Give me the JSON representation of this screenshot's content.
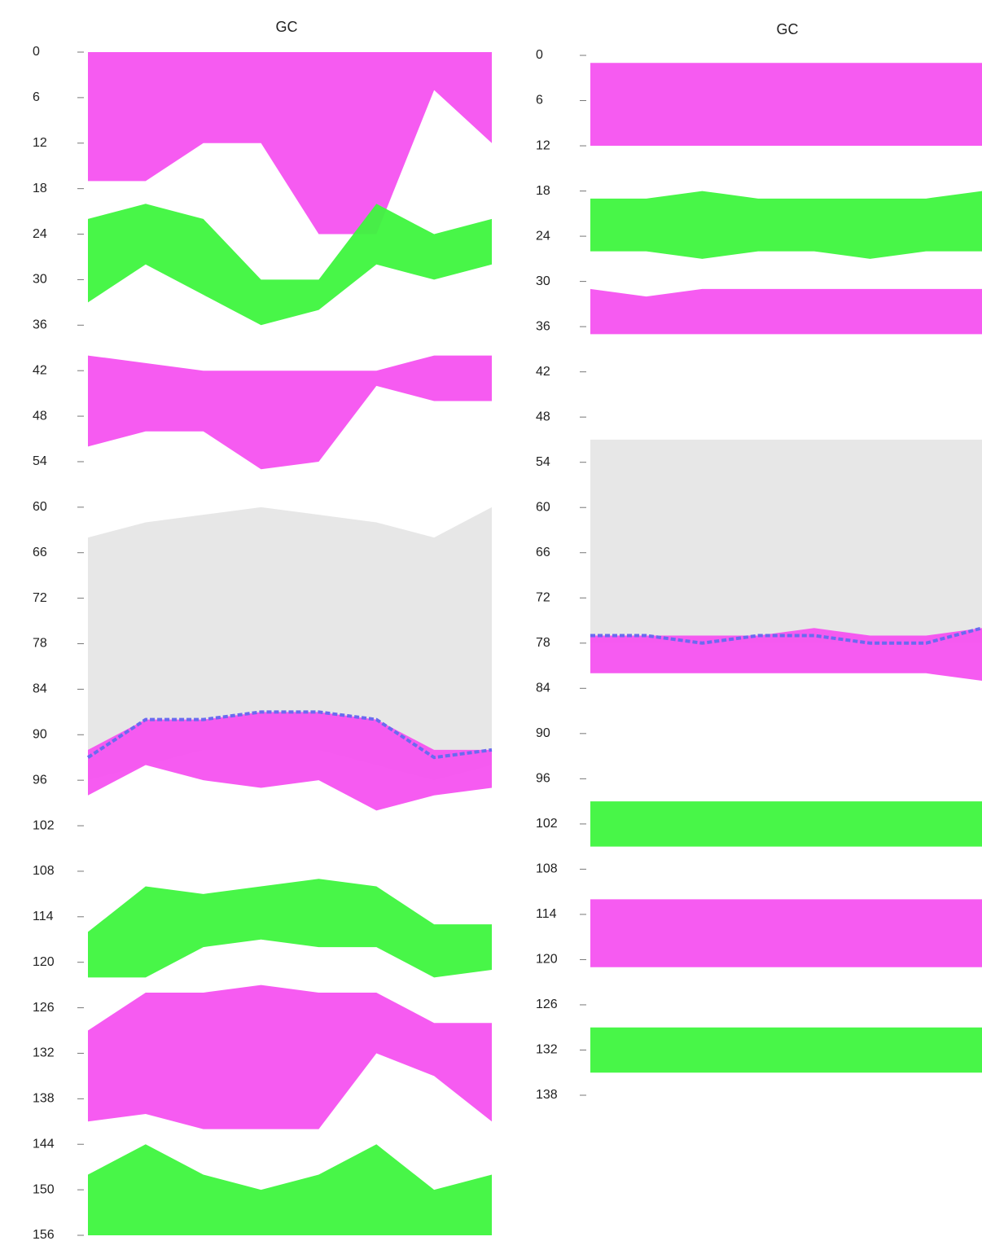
{
  "chart_data": [
    {
      "type": "range-area",
      "title": "GC",
      "ylim": [
        0,
        156
      ],
      "yticks": [
        0,
        6,
        12,
        18,
        24,
        30,
        36,
        42,
        48,
        54,
        60,
        66,
        72,
        78,
        84,
        90,
        96,
        102,
        108,
        114,
        120,
        126,
        132,
        138,
        144,
        150,
        156
      ],
      "series": [
        {
          "color": "#f552f0",
          "top": [
            0,
            0,
            0,
            0,
            0,
            0,
            0,
            0
          ],
          "bottom": [
            17,
            17,
            12,
            12,
            24,
            24,
            5,
            12
          ]
        },
        {
          "color": "#3ef53e",
          "top": [
            22,
            20,
            22,
            30,
            30,
            20,
            24,
            22
          ],
          "bottom": [
            33,
            28,
            32,
            36,
            34,
            28,
            30,
            28
          ]
        },
        {
          "color": "#f552f0",
          "top": [
            40,
            41,
            42,
            42,
            42,
            42,
            40,
            40
          ],
          "bottom": [
            52,
            50,
            50,
            55,
            54,
            44,
            46,
            46
          ]
        },
        {
          "color": "#e6e6e6",
          "top": [
            64,
            62,
            61,
            60,
            61,
            62,
            64,
            60
          ],
          "bottom": [
            96,
            94,
            92,
            92,
            92,
            94,
            96,
            94
          ]
        },
        {
          "color": "#f552f0",
          "top": [
            92,
            88,
            88,
            87,
            87,
            88,
            92,
            92
          ],
          "bottom": [
            98,
            94,
            96,
            97,
            96,
            100,
            98,
            97
          ]
        },
        {
          "color": "#6a6af0",
          "values": [
            93,
            88,
            88,
            87,
            87,
            88,
            93,
            92
          ]
        },
        {
          "color": "#3ef53e",
          "top": [
            116,
            110,
            111,
            110,
            109,
            110,
            115,
            115
          ],
          "bottom": [
            122,
            122,
            118,
            117,
            118,
            118,
            122,
            121
          ]
        },
        {
          "color": "#f552f0",
          "top": [
            129,
            124,
            124,
            123,
            124,
            124,
            128,
            128
          ],
          "bottom": [
            141,
            140,
            142,
            142,
            142,
            132,
            135,
            141
          ]
        },
        {
          "color": "#3ef53e",
          "top": [
            148,
            144,
            148,
            150,
            148,
            144,
            150,
            148
          ],
          "bottom": [
            156,
            156,
            156,
            156,
            156,
            156,
            156,
            156
          ]
        }
      ]
    },
    {
      "type": "range-area",
      "title": "GC",
      "ylim": [
        0,
        138
      ],
      "yticks": [
        0,
        6,
        12,
        18,
        24,
        30,
        36,
        42,
        48,
        54,
        60,
        66,
        72,
        78,
        84,
        90,
        96,
        102,
        108,
        114,
        120,
        126,
        132,
        138
      ],
      "series": [
        {
          "color": "#f552f0",
          "top": [
            1,
            1,
            1,
            1,
            1,
            1,
            1,
            1
          ],
          "bottom": [
            12,
            12,
            12,
            12,
            12,
            12,
            12,
            12
          ]
        },
        {
          "color": "#3ef53e",
          "top": [
            19,
            19,
            18,
            19,
            19,
            19,
            19,
            18
          ],
          "bottom": [
            26,
            26,
            27,
            26,
            26,
            27,
            26,
            26
          ]
        },
        {
          "color": "#f552f0",
          "top": [
            31,
            32,
            31,
            31,
            31,
            31,
            31,
            31
          ],
          "bottom": [
            37,
            37,
            37,
            37,
            37,
            37,
            37,
            37
          ]
        },
        {
          "color": "#e6e6e6",
          "top": [
            51,
            51,
            51,
            51,
            51,
            51,
            51,
            51
          ],
          "bottom": [
            78,
            78,
            78,
            78,
            78,
            78,
            78,
            78
          ]
        },
        {
          "color": "#f552f0",
          "top": [
            77,
            77,
            77,
            77,
            76,
            77,
            77,
            76
          ],
          "bottom": [
            82,
            82,
            82,
            82,
            82,
            82,
            82,
            83
          ]
        },
        {
          "color": "#6a6af0",
          "values": [
            77,
            77,
            78,
            77,
            77,
            78,
            78,
            76
          ]
        },
        {
          "color": "#3ef53e",
          "top": [
            99,
            99,
            99,
            99,
            99,
            99,
            99,
            99
          ],
          "bottom": [
            105,
            105,
            105,
            105,
            105,
            105,
            105,
            105
          ]
        },
        {
          "color": "#f552f0",
          "top": [
            112,
            112,
            112,
            112,
            112,
            112,
            112,
            112
          ],
          "bottom": [
            121,
            121,
            121,
            121,
            121,
            121,
            121,
            121
          ]
        },
        {
          "color": "#3ef53e",
          "top": [
            129,
            129,
            129,
            129,
            129,
            129,
            129,
            129
          ],
          "bottom": [
            135,
            135,
            135,
            135,
            135,
            135,
            135,
            135
          ]
        }
      ]
    }
  ]
}
